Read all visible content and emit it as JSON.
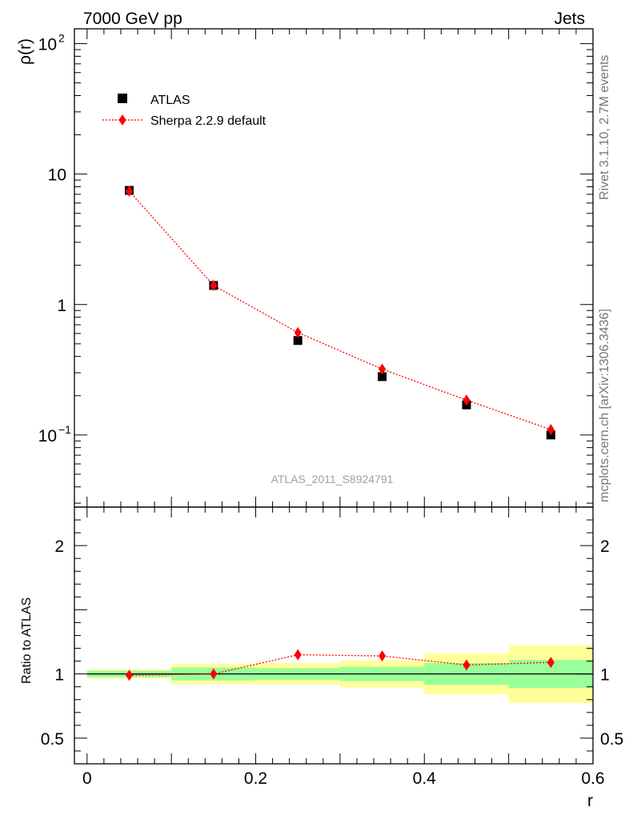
{
  "header": {
    "left": "7000 GeV pp",
    "right": "Jets"
  },
  "side_labels": {
    "rivet": "Rivet 3.1.10,  2.7M events",
    "source": "mcplots.cern.ch [arXiv:1306.3436]"
  },
  "chart_data": [
    {
      "type": "scatter",
      "panel": "main",
      "ylabel": "ρ(r)",
      "yscale": "log",
      "ylim": [
        0.028,
        130
      ],
      "xlim": [
        -0.015,
        0.6
      ],
      "y_ticks": [
        {
          "value": 0.1,
          "label": "10",
          "sup": "−1"
        },
        {
          "value": 1,
          "label": "1",
          "sup": ""
        },
        {
          "value": 10,
          "label": "10",
          "sup": ""
        },
        {
          "value": 100,
          "label": "10",
          "sup": "2"
        }
      ],
      "watermark": "ATLAS_2011_S8924791",
      "legend": {
        "placement": "top-left"
      },
      "series": [
        {
          "name": "ATLAS",
          "marker": "square",
          "color": "#000000",
          "x": [
            0.05,
            0.15,
            0.25,
            0.35,
            0.45,
            0.55
          ],
          "y": [
            7.5,
            1.4,
            0.53,
            0.28,
            0.17,
            0.1
          ]
        },
        {
          "name": "Sherpa 2.2.9 default",
          "marker": "diamond",
          "line": "dotted",
          "color": "#ff0000",
          "x": [
            0.05,
            0.15,
            0.25,
            0.35,
            0.45,
            0.55
          ],
          "y": [
            7.4,
            1.4,
            0.61,
            0.32,
            0.185,
            0.11
          ]
        }
      ]
    },
    {
      "type": "scatter",
      "panel": "ratio",
      "xlabel": "r",
      "ylabel": "Ratio to ATLAS",
      "ylim": [
        0.3,
        2.3
      ],
      "xlim": [
        -0.015,
        0.6
      ],
      "x_ticks": [
        {
          "value": 0,
          "label": "0"
        },
        {
          "value": 0.2,
          "label": "0.2"
        },
        {
          "value": 0.4,
          "label": "0.4"
        },
        {
          "value": 0.6,
          "label": "0.6"
        }
      ],
      "y_ticks": [
        {
          "value": 0.5,
          "label": "0.5"
        },
        {
          "value": 1,
          "label": "1"
        },
        {
          "value": 2,
          "label": "2"
        }
      ],
      "bands": [
        {
          "x0": 0.0,
          "x1": 0.1,
          "yellow": [
            0.965,
            1.035
          ],
          "green": [
            0.975,
            1.025
          ]
        },
        {
          "x0": 0.1,
          "x1": 0.2,
          "yellow": [
            0.92,
            1.08
          ],
          "green": [
            0.95,
            1.05
          ]
        },
        {
          "x0": 0.2,
          "x1": 0.3,
          "yellow": [
            0.915,
            1.085
          ],
          "green": [
            0.955,
            1.045
          ]
        },
        {
          "x0": 0.3,
          "x1": 0.4,
          "yellow": [
            0.895,
            1.105
          ],
          "green": [
            0.945,
            1.055
          ]
        },
        {
          "x0": 0.4,
          "x1": 0.5,
          "yellow": [
            0.84,
            1.16
          ],
          "green": [
            0.915,
            1.085
          ]
        },
        {
          "x0": 0.5,
          "x1": 0.6,
          "yellow": [
            0.775,
            1.225
          ],
          "green": [
            0.89,
            1.11
          ]
        }
      ],
      "band_colors": {
        "yellow": "#ffff99",
        "green": "#99ff99"
      },
      "series": [
        {
          "name": "Sherpa 2.2.9 default",
          "color": "#ff0000",
          "x": [
            0.05,
            0.15,
            0.25,
            0.35,
            0.45,
            0.55
          ],
          "y": [
            0.99,
            1.0,
            1.15,
            1.14,
            1.07,
            1.09
          ]
        }
      ]
    }
  ]
}
